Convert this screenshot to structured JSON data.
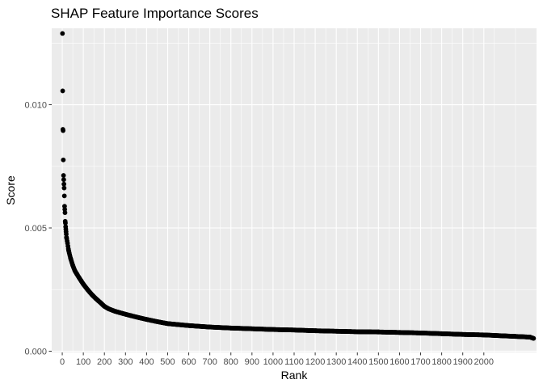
{
  "chart_data": {
    "type": "scatter",
    "title": "SHAP Feature Importance Scores",
    "xlabel": "Rank",
    "ylabel": "Score",
    "xlim": [
      -50,
      2250
    ],
    "ylim": [
      -5e-05,
      0.0131
    ],
    "x_ticks": [
      0,
      100,
      200,
      300,
      400,
      500,
      600,
      700,
      800,
      900,
      1000,
      1100,
      1200,
      1300,
      1400,
      1500,
      1600,
      1700,
      1800,
      1900,
      2000
    ],
    "x_tick_labels": [
      "0",
      "100",
      "200",
      "300",
      "400",
      "500",
      "600",
      "700",
      "800",
      "900",
      "1000",
      "1100",
      "1200",
      "1300",
      "1400",
      "1500",
      "1600",
      "1700",
      "1800",
      "1900",
      "2000"
    ],
    "y_ticks": [
      0.0,
      0.005,
      0.01
    ],
    "y_tick_labels": [
      "0.000",
      "0.005",
      "0.010"
    ],
    "grid": true,
    "legend": "none",
    "background_color": "#ebebeb",
    "grid_color": "#ffffff",
    "point_color": "#000000",
    "n_points": 2236,
    "series": [
      {
        "values_at_rank": [
          [
            1,
            0.01289
          ],
          [
            2,
            0.01056
          ],
          [
            3,
            0.009
          ],
          [
            4,
            0.00895
          ],
          [
            5,
            0.00776
          ],
          [
            6,
            0.00713
          ],
          [
            7,
            0.00696
          ],
          [
            8,
            0.00678
          ],
          [
            9,
            0.00662
          ],
          [
            10,
            0.0063
          ],
          [
            11,
            0.00588
          ],
          [
            12,
            0.00575
          ],
          [
            13,
            0.00562
          ],
          [
            14,
            0.00527
          ],
          [
            15,
            0.0052
          ],
          [
            16,
            0.00505
          ],
          [
            17,
            0.00495
          ],
          [
            18,
            0.00485
          ],
          [
            19,
            0.00475
          ],
          [
            20,
            0.00462
          ],
          [
            25,
            0.00438
          ],
          [
            30,
            0.0041
          ],
          [
            40,
            0.00375
          ],
          [
            50,
            0.00348
          ],
          [
            60,
            0.00326
          ],
          [
            70,
            0.00312
          ],
          [
            80,
            0.00298
          ],
          [
            90,
            0.00285
          ],
          [
            100,
            0.00272
          ],
          [
            120,
            0.0025
          ],
          [
            140,
            0.0023
          ],
          [
            160,
            0.00213
          ],
          [
            180,
            0.00198
          ],
          [
            200,
            0.00182
          ],
          [
            220,
            0.00172
          ],
          [
            250,
            0.00162
          ],
          [
            300,
            0.0015
          ],
          [
            350,
            0.00139
          ],
          [
            400,
            0.00129
          ],
          [
            450,
            0.0012
          ],
          [
            500,
            0.00112
          ],
          [
            600,
            0.00104
          ],
          [
            700,
            0.00098
          ],
          [
            800,
            0.00094
          ],
          [
            900,
            0.00091
          ],
          [
            1000,
            0.00088
          ],
          [
            1100,
            0.00086
          ],
          [
            1200,
            0.00083
          ],
          [
            1300,
            0.00081
          ],
          [
            1400,
            0.00079
          ],
          [
            1500,
            0.00078
          ],
          [
            1600,
            0.00076
          ],
          [
            1700,
            0.00074
          ],
          [
            1800,
            0.00071
          ],
          [
            1900,
            0.00068
          ],
          [
            2000,
            0.00066
          ],
          [
            2100,
            0.00062
          ],
          [
            2150,
            0.0006
          ],
          [
            2200,
            0.00058
          ],
          [
            2220,
            0.00057
          ],
          [
            2236,
            0.00052
          ]
        ]
      }
    ]
  }
}
